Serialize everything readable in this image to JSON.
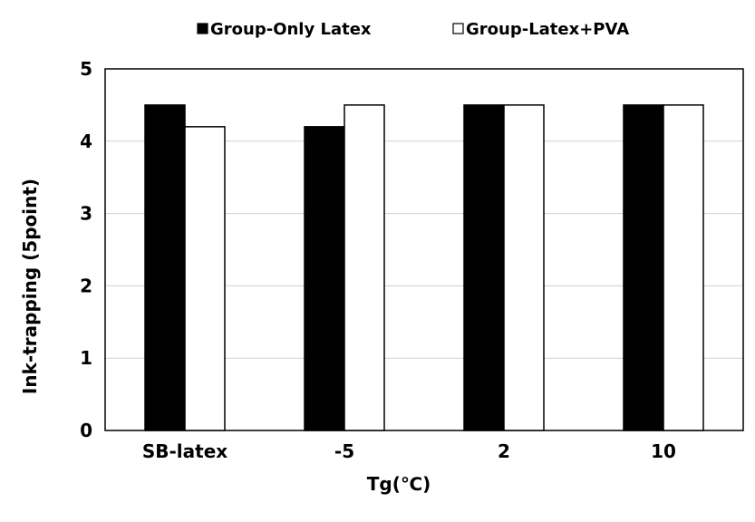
{
  "chart_data": {
    "type": "bar",
    "categories": [
      "SB-latex",
      "-5",
      "2",
      "10"
    ],
    "series": [
      {
        "name": "Group-Only Latex",
        "values": [
          4.5,
          4.2,
          4.5,
          4.5
        ],
        "color": "#000000"
      },
      {
        "name": "Group-Latex+PVA",
        "values": [
          4.2,
          4.5,
          4.5,
          4.5
        ],
        "color": "#ffffff"
      }
    ],
    "xlabel": "Tg(℃)",
    "ylabel": "Ink-trapping (5point)",
    "ylim": [
      0,
      5
    ],
    "yticks": [
      0,
      1,
      2,
      3,
      4,
      5
    ],
    "grid": true,
    "legend_position": "top"
  }
}
